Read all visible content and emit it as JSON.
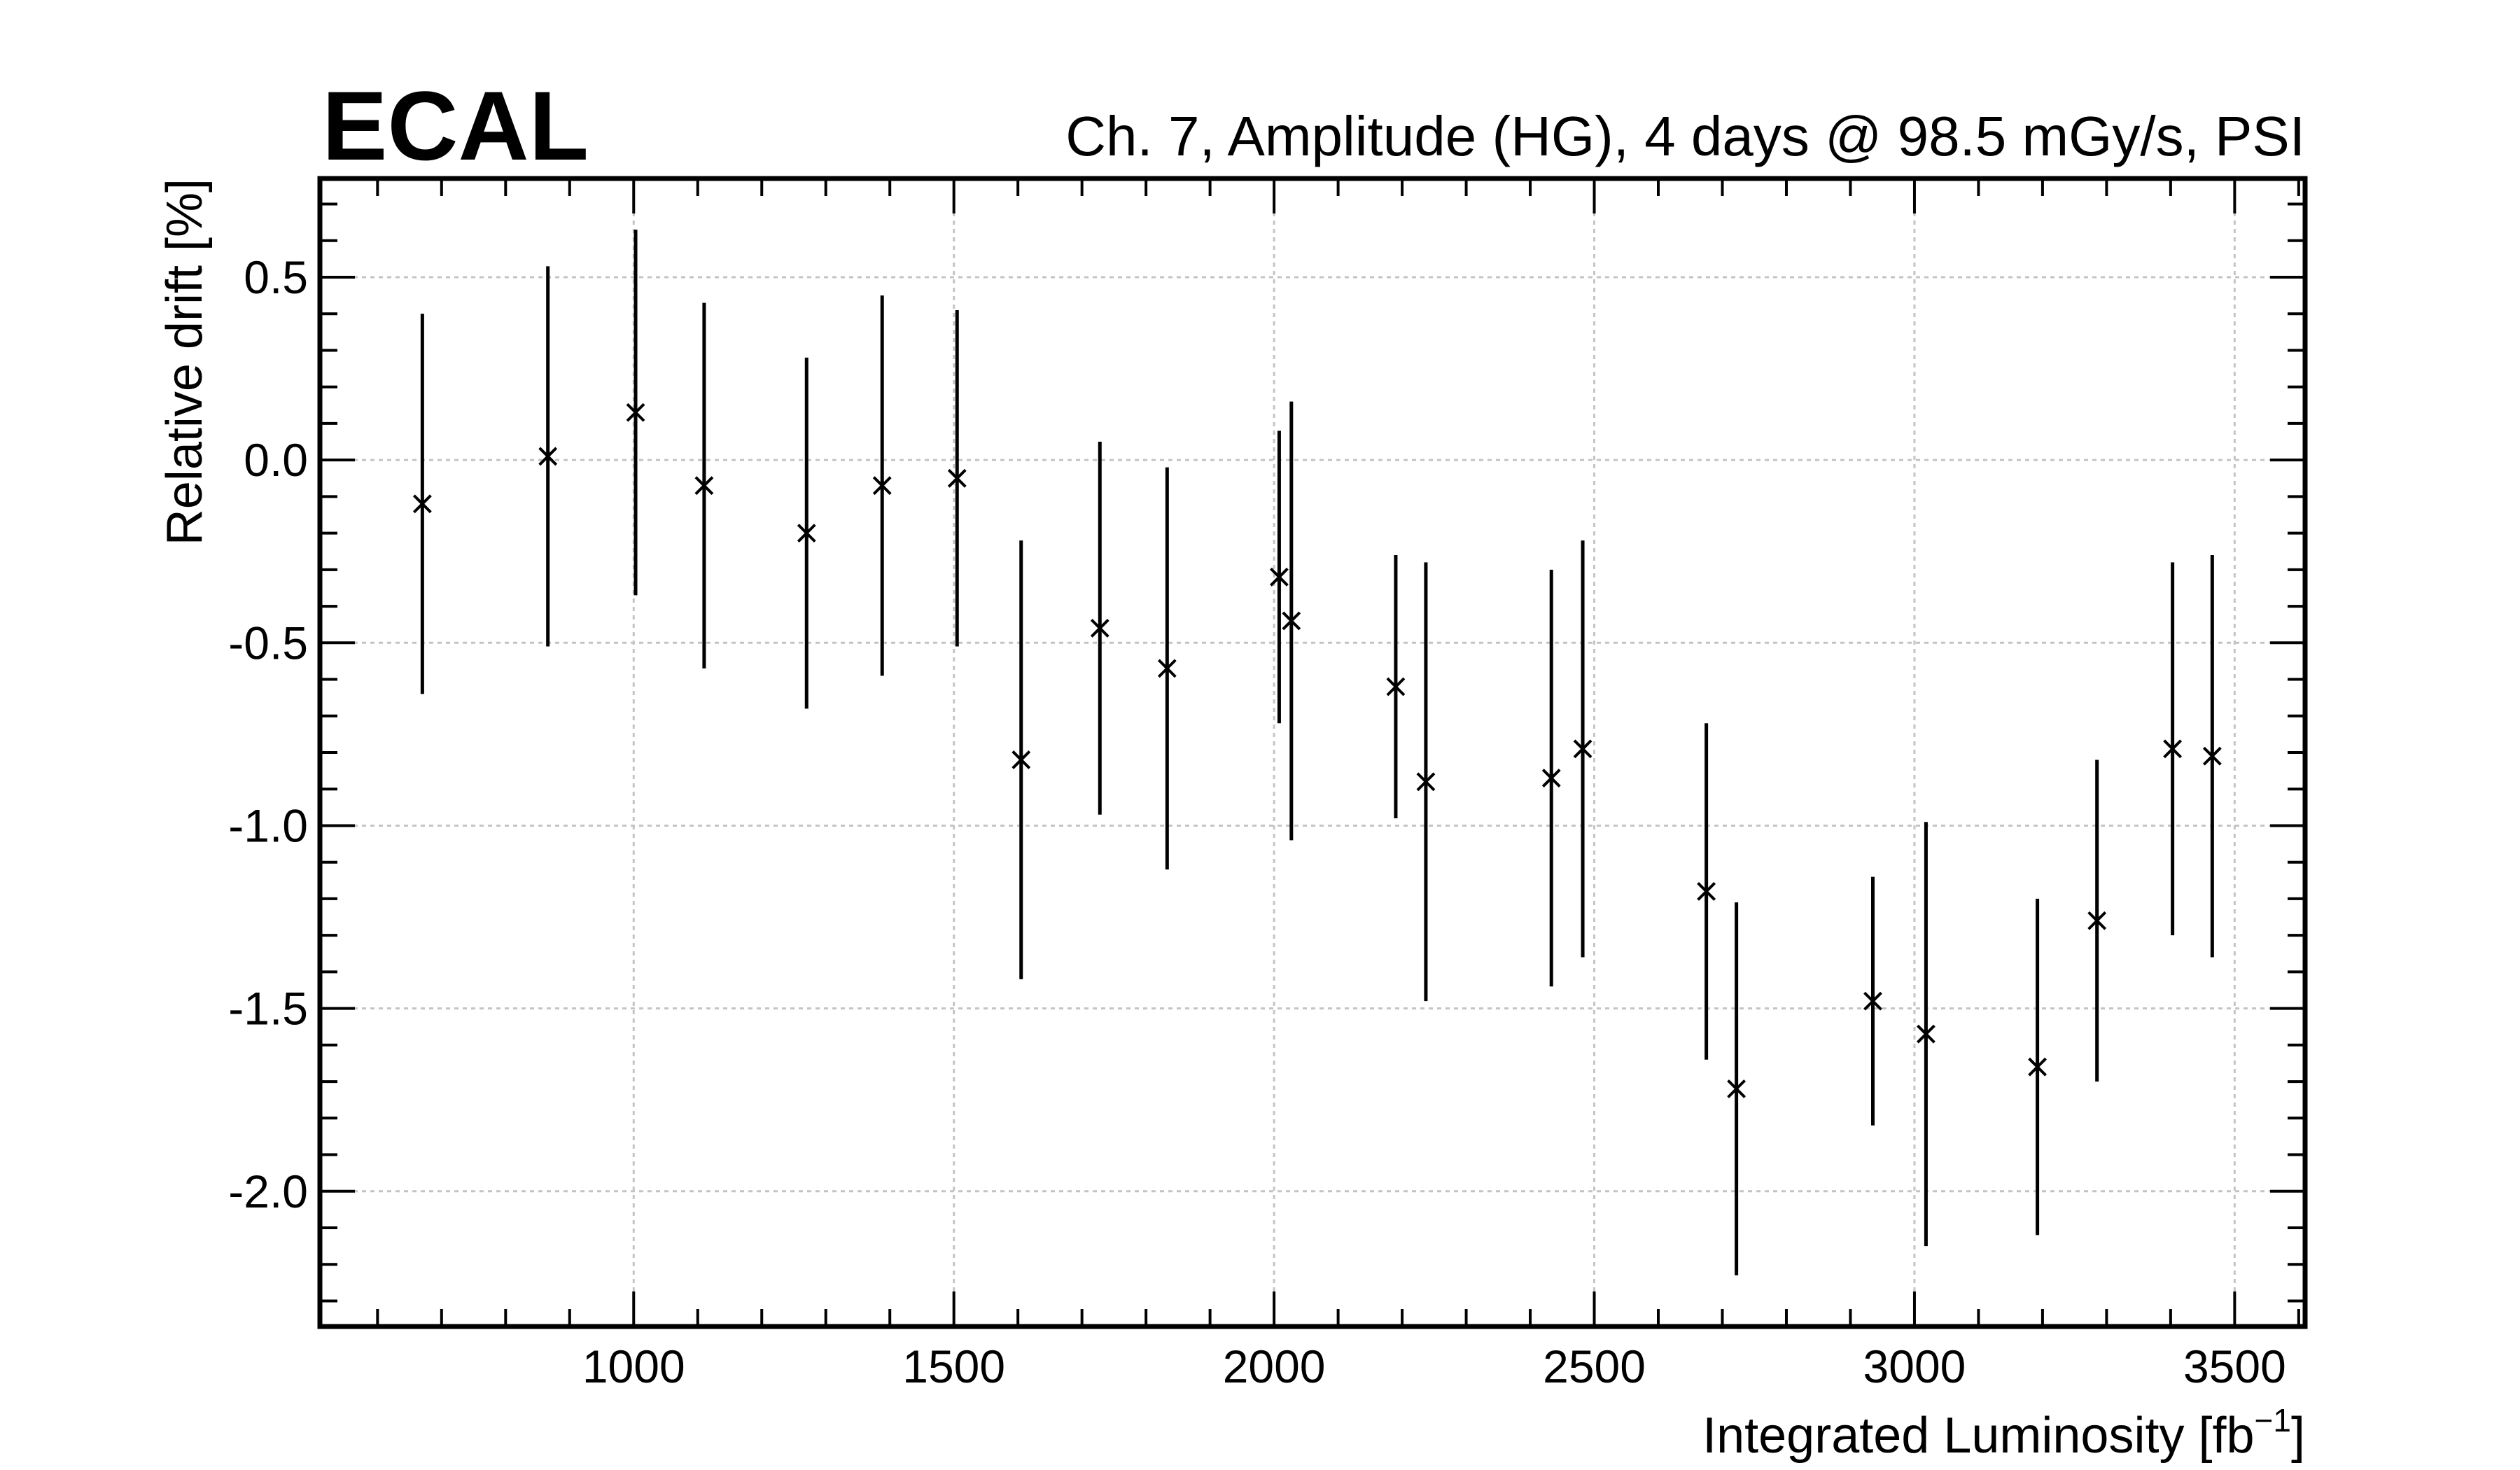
{
  "logo_text": "ECAL",
  "chart_data": {
    "type": "scatter",
    "title": "Ch. 7, Amplitude (HG), 4 days @ 98.5 mGy/s, PSI",
    "xlabel": "Integrated Luminosity [fb",
    "xlabel_sup": "−1",
    "xlabel_end": "]",
    "ylabel": "Relative drift [%]",
    "xlim": [
      510,
      3610
    ],
    "ylim": [
      -2.37,
      0.77
    ],
    "grid": true,
    "x_ticks": [
      1000,
      1500,
      2000,
      2500,
      3000,
      3500
    ],
    "x_tick_labels": [
      "1000",
      "1500",
      "2000",
      "2500",
      "3000",
      "3500"
    ],
    "y_ticks": [
      0.5,
      0.0,
      -0.5,
      -1.0,
      -1.5,
      -2.0
    ],
    "y_tick_labels": [
      "0.5",
      "0.0",
      "-0.5",
      "-1.0",
      "-1.5",
      "-2.0"
    ],
    "points": [
      {
        "x": 670,
        "y": -0.12,
        "err": 0.52
      },
      {
        "x": 866,
        "y": 0.01,
        "err": 0.52
      },
      {
        "x": 1003,
        "y": 0.13,
        "err": 0.5
      },
      {
        "x": 1110,
        "y": -0.07,
        "err": 0.5
      },
      {
        "x": 1270,
        "y": -0.2,
        "err": 0.48
      },
      {
        "x": 1388,
        "y": -0.07,
        "err": 0.52
      },
      {
        "x": 1505,
        "y": -0.05,
        "err": 0.46
      },
      {
        "x": 1605,
        "y": -0.82,
        "err": 0.6
      },
      {
        "x": 1728,
        "y": -0.46,
        "err": 0.51
      },
      {
        "x": 1833,
        "y": -0.57,
        "err": 0.55
      },
      {
        "x": 2008,
        "y": -0.32,
        "err": 0.4
      },
      {
        "x": 2027,
        "y": -0.44,
        "err": 0.6
      },
      {
        "x": 2190,
        "y": -0.62,
        "err": 0.36
      },
      {
        "x": 2237,
        "y": -0.88,
        "err": 0.6
      },
      {
        "x": 2433,
        "y": -0.87,
        "err": 0.57
      },
      {
        "x": 2482,
        "y": -0.79,
        "err": 0.57
      },
      {
        "x": 2675,
        "y": -1.18,
        "err": 0.46
      },
      {
        "x": 2722,
        "y": -1.72,
        "err": 0.51
      },
      {
        "x": 2935,
        "y": -1.48,
        "err": 0.34
      },
      {
        "x": 3018,
        "y": -1.57,
        "err": 0.58
      },
      {
        "x": 3192,
        "y": -1.66,
        "err": 0.46
      },
      {
        "x": 3285,
        "y": -1.26,
        "err": 0.44
      },
      {
        "x": 3403,
        "y": -0.79,
        "err": 0.51
      },
      {
        "x": 3465,
        "y": -0.81,
        "err": 0.55
      }
    ]
  }
}
